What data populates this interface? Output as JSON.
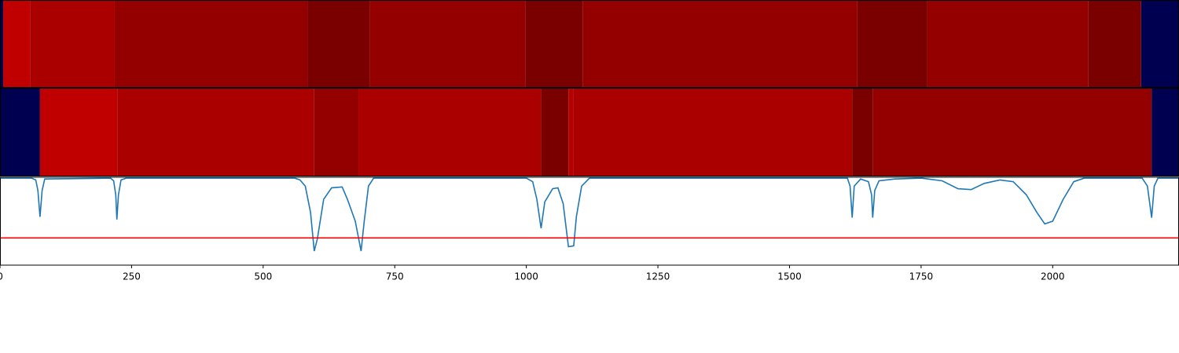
{
  "chart_data": [
    {
      "type": "segments",
      "xlim": [
        0,
        2240
      ],
      "bins": [
        0,
        6,
        57,
        218,
        584,
        702,
        998,
        1107,
        1629,
        1762,
        2068,
        2168,
        2240
      ],
      "colors": [
        "#000050",
        "#c00000",
        "#aa0000",
        "#940000",
        "#7a0000",
        "#940000",
        "#7a0000",
        "#940000",
        "#7a0000",
        "#940000",
        "#7a0000",
        "#000050"
      ]
    },
    {
      "type": "segments",
      "xlim": [
        0,
        2240
      ],
      "bins": [
        0,
        76,
        223,
        597,
        681,
        1028,
        1080,
        1090,
        1619,
        1658,
        2188,
        2240
      ],
      "colors": [
        "#000050",
        "#c00000",
        "#aa0000",
        "#940000",
        "#aa0000",
        "#7a0000",
        "#b40000",
        "#aa0000",
        "#7a0000",
        "#940000",
        "#000050"
      ]
    },
    {
      "type": "line",
      "xlim": [
        0,
        2240
      ],
      "ylim": [
        0,
        1
      ],
      "xticks": [
        0,
        250,
        500,
        750,
        1000,
        1250,
        1500,
        1750,
        2000
      ],
      "hline": 0.31,
      "hline_color": "#ff0000",
      "series": [
        {
          "color": "#1f77b4",
          "x": [
            0,
            60,
            68,
            72,
            76,
            80,
            85,
            210,
            216,
            220,
            222,
            225,
            230,
            240,
            560,
            570,
            580,
            590,
            597,
            603,
            615,
            630,
            650,
            660,
            675,
            686,
            692,
            700,
            710,
            1000,
            1012,
            1020,
            1028,
            1035,
            1050,
            1060,
            1070,
            1080,
            1090,
            1095,
            1105,
            1120,
            1610,
            1615,
            1619,
            1623,
            1635,
            1650,
            1656,
            1658,
            1662,
            1670,
            1700,
            1750,
            1790,
            1820,
            1845,
            1870,
            1900,
            1925,
            1950,
            1970,
            1985,
            2000,
            2020,
            2040,
            2060,
            2170,
            2180,
            2188,
            2193,
            2200,
            2240
          ],
          "values": [
            0.99,
            0.99,
            0.97,
            0.85,
            0.55,
            0.85,
            0.98,
            0.99,
            0.96,
            0.8,
            0.52,
            0.8,
            0.97,
            0.99,
            0.99,
            0.97,
            0.9,
            0.6,
            0.16,
            0.3,
            0.75,
            0.88,
            0.89,
            0.75,
            0.5,
            0.16,
            0.5,
            0.9,
            0.99,
            0.99,
            0.95,
            0.75,
            0.42,
            0.72,
            0.87,
            0.88,
            0.7,
            0.21,
            0.22,
            0.55,
            0.9,
            0.99,
            0.99,
            0.9,
            0.54,
            0.9,
            0.98,
            0.95,
            0.8,
            0.54,
            0.85,
            0.96,
            0.98,
            0.99,
            0.96,
            0.87,
            0.86,
            0.93,
            0.97,
            0.95,
            0.8,
            0.6,
            0.47,
            0.5,
            0.75,
            0.95,
            0.99,
            0.99,
            0.9,
            0.54,
            0.9,
            0.99,
            0.99
          ]
        }
      ]
    }
  ]
}
